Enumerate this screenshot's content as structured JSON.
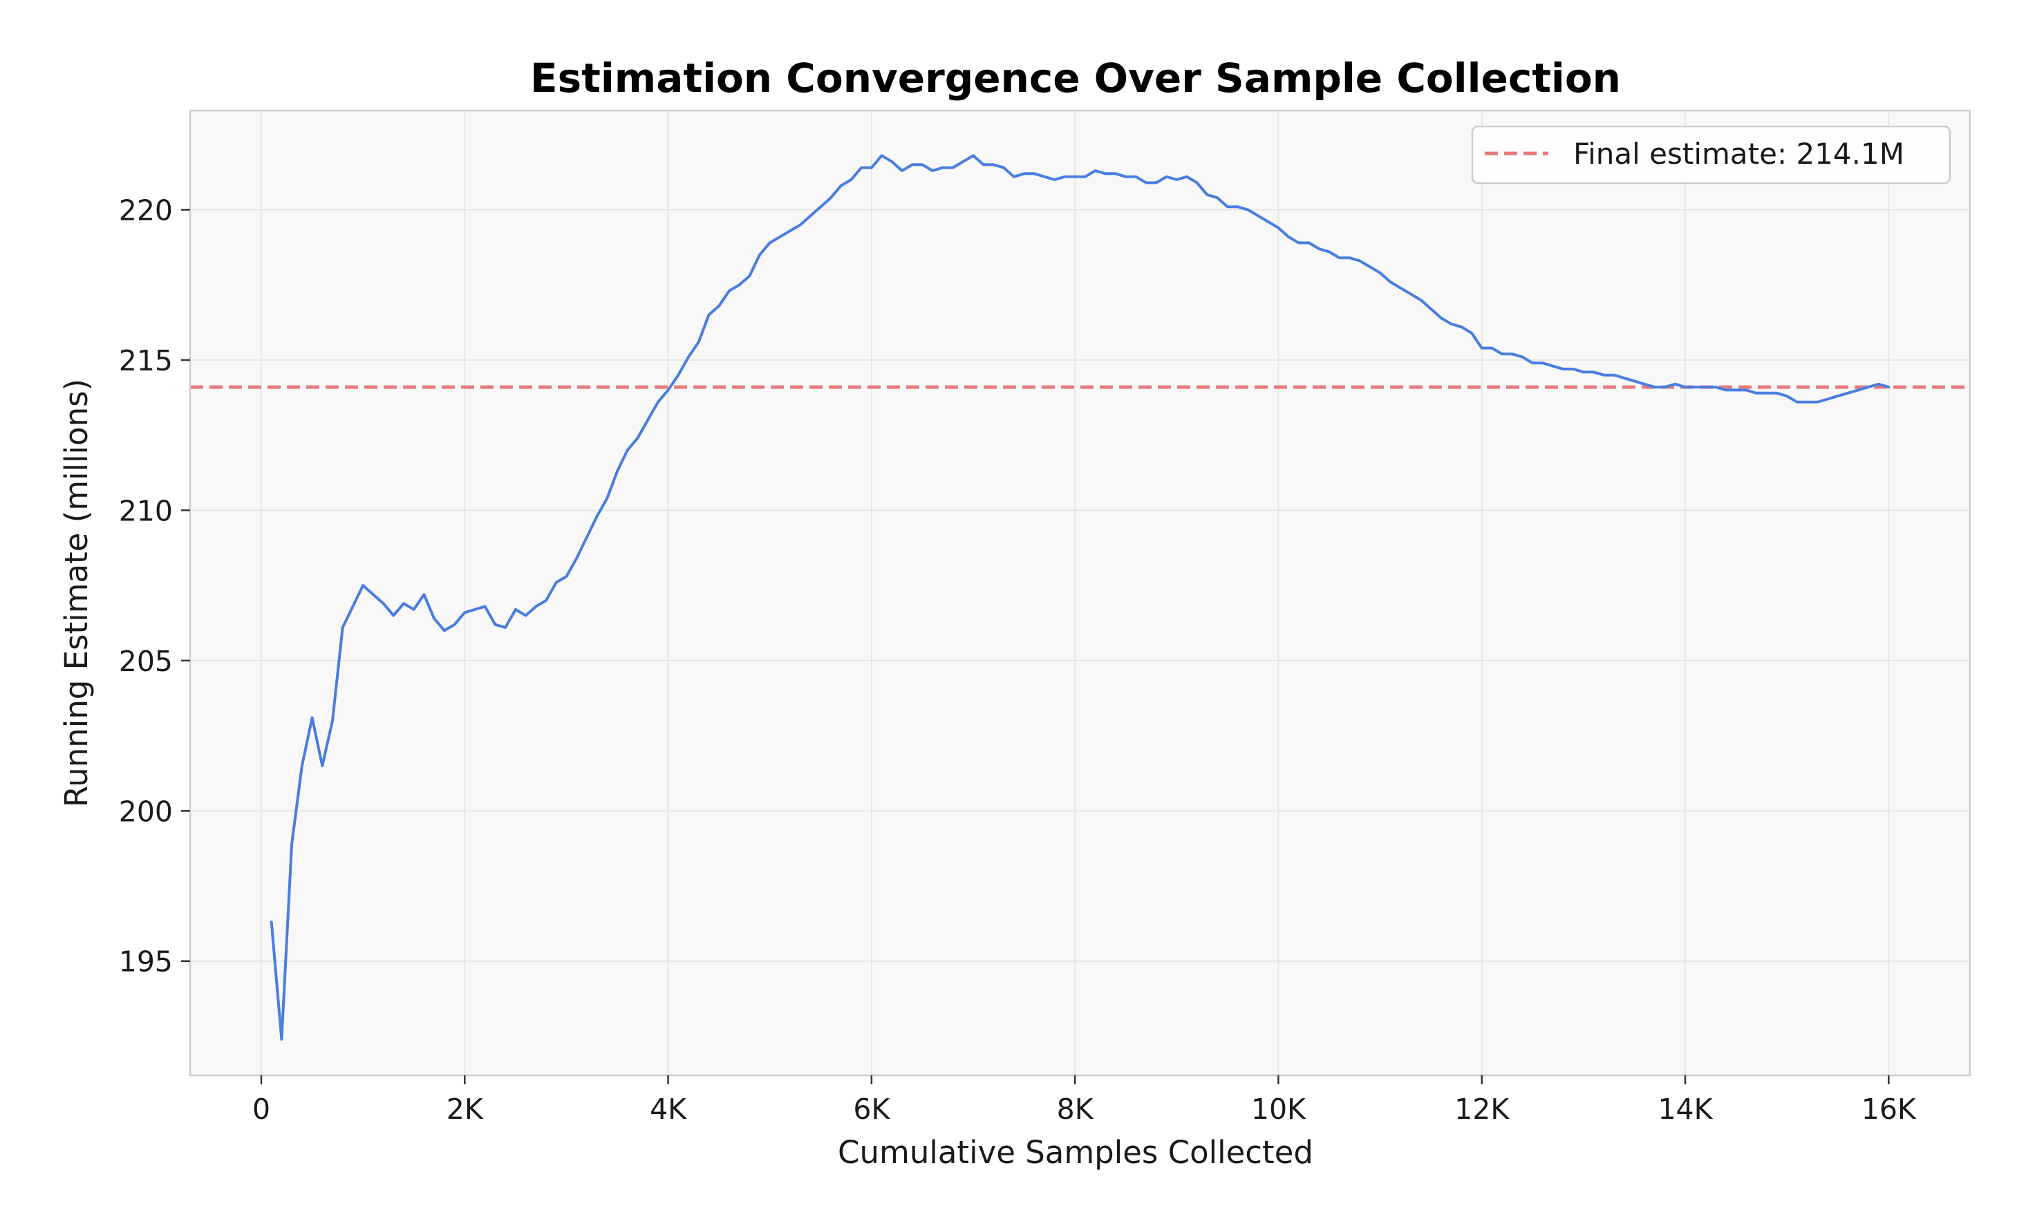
{
  "chart_data": {
    "type": "line",
    "title": "Estimation Convergence Over Sample Collection",
    "xlabel": "Cumulative Samples Collected",
    "ylabel": "Running Estimate (millions)",
    "xlim": [
      -700,
      16800
    ],
    "ylim": [
      191.2,
      223.3
    ],
    "x_ticks": [
      {
        "value": 0,
        "label": "0"
      },
      {
        "value": 2000,
        "label": "2K"
      },
      {
        "value": 4000,
        "label": "4K"
      },
      {
        "value": 6000,
        "label": "6K"
      },
      {
        "value": 8000,
        "label": "8K"
      },
      {
        "value": 10000,
        "label": "10K"
      },
      {
        "value": 12000,
        "label": "12K"
      },
      {
        "value": 14000,
        "label": "14K"
      },
      {
        "value": 16000,
        "label": "16K"
      }
    ],
    "y_ticks": [
      {
        "value": 195,
        "label": "195"
      },
      {
        "value": 200,
        "label": "200"
      },
      {
        "value": 205,
        "label": "205"
      },
      {
        "value": 210,
        "label": "210"
      },
      {
        "value": 215,
        "label": "215"
      },
      {
        "value": 220,
        "label": "220"
      }
    ],
    "grid": true,
    "legend_position": "top-right",
    "colors": {
      "series": "#4a7de0",
      "reference": "#e87a7a",
      "plot_background": "#f8f8f8",
      "grid": "#e6e6e6",
      "frame": "#cccccc"
    },
    "series": [
      {
        "values_x": [
          100,
          200,
          300,
          400,
          500,
          600,
          700,
          800,
          900,
          1000,
          1100,
          1200,
          1300,
          1400,
          1500,
          1600,
          1700,
          1800,
          1900,
          2000,
          2100,
          2200,
          2300,
          2400,
          2500,
          2600,
          2700,
          2800,
          2900,
          3000,
          3100,
          3200,
          3300,
          3400,
          3500,
          3600,
          3700,
          3800,
          3900,
          4000,
          4100,
          4200,
          4300,
          4400,
          4500,
          4600,
          4700,
          4800,
          4900,
          5000,
          5100,
          5200,
          5300,
          5400,
          5500,
          5600,
          5700,
          5800,
          5900,
          6000,
          6100,
          6200,
          6300,
          6400,
          6500,
          6600,
          6700,
          6800,
          6900,
          7000,
          7100,
          7200,
          7300,
          7400,
          7500,
          7600,
          7700,
          7800,
          7900,
          8000,
          8100,
          8200,
          8300,
          8400,
          8500,
          8600,
          8700,
          8800,
          8900,
          9000,
          9100,
          9200,
          9300,
          9400,
          9500,
          9600,
          9700,
          9800,
          9900,
          10000,
          10100,
          10200,
          10300,
          10400,
          10500,
          10600,
          10700,
          10800,
          10900,
          11000,
          11100,
          11200,
          11300,
          11400,
          11500,
          11600,
          11700,
          11800,
          11900,
          12000,
          12100,
          12200,
          12300,
          12400,
          12500,
          12600,
          12700,
          12800,
          12900,
          13000,
          13100,
          13200,
          13300,
          13400,
          13500,
          13600,
          13700,
          13800,
          13900,
          14000,
          14100,
          14200,
          14300,
          14400,
          14500,
          14600,
          14700,
          14800,
          14900,
          15000,
          15100,
          15200,
          15300,
          15400,
          15500,
          15600,
          15700,
          15800,
          15900,
          16000
        ],
        "values_y": [
          196.3,
          192.4,
          198.9,
          201.5,
          203.1,
          201.5,
          203.0,
          206.1,
          206.8,
          207.5,
          207.2,
          206.9,
          206.5,
          206.9,
          206.7,
          207.2,
          206.4,
          206.0,
          206.2,
          206.6,
          206.7,
          206.8,
          206.2,
          206.1,
          206.7,
          206.5,
          206.8,
          207.0,
          207.6,
          207.8,
          208.4,
          209.1,
          209.8,
          210.4,
          211.3,
          212.0,
          212.4,
          213.0,
          213.6,
          214.0,
          214.5,
          215.1,
          215.6,
          216.5,
          216.8,
          217.3,
          217.5,
          217.8,
          218.5,
          218.9,
          219.1,
          219.3,
          219.5,
          219.8,
          220.1,
          220.4,
          220.8,
          221.0,
          221.4,
          221.4,
          221.8,
          221.6,
          221.3,
          221.5,
          221.5,
          221.3,
          221.4,
          221.4,
          221.6,
          221.8,
          221.5,
          221.5,
          221.4,
          221.1,
          221.2,
          221.2,
          221.1,
          221.0,
          221.1,
          221.1,
          221.1,
          221.3,
          221.2,
          221.2,
          221.1,
          221.1,
          220.9,
          220.9,
          221.1,
          221.0,
          221.1,
          220.9,
          220.5,
          220.4,
          220.1,
          220.1,
          220.0,
          219.8,
          219.6,
          219.4,
          219.1,
          218.9,
          218.9,
          218.7,
          218.6,
          218.4,
          218.4,
          218.3,
          218.1,
          217.9,
          217.6,
          217.4,
          217.2,
          217.0,
          216.7,
          216.4,
          216.2,
          216.1,
          215.9,
          215.4,
          215.4,
          215.2,
          215.2,
          215.1,
          214.9,
          214.9,
          214.8,
          214.7,
          214.7,
          214.6,
          214.6,
          214.5,
          214.5,
          214.4,
          214.3,
          214.2,
          214.1,
          214.1,
          214.2,
          214.1,
          214.1,
          214.1,
          214.1,
          214.0,
          214.0,
          214.0,
          213.9,
          213.9,
          213.9,
          213.8,
          213.6,
          213.6,
          213.6,
          213.7,
          213.8,
          213.9,
          214.0,
          214.1,
          214.2,
          214.1
        ]
      }
    ],
    "reference_line": {
      "y": 214.1,
      "label": "Final estimate: 214.1M"
    }
  }
}
